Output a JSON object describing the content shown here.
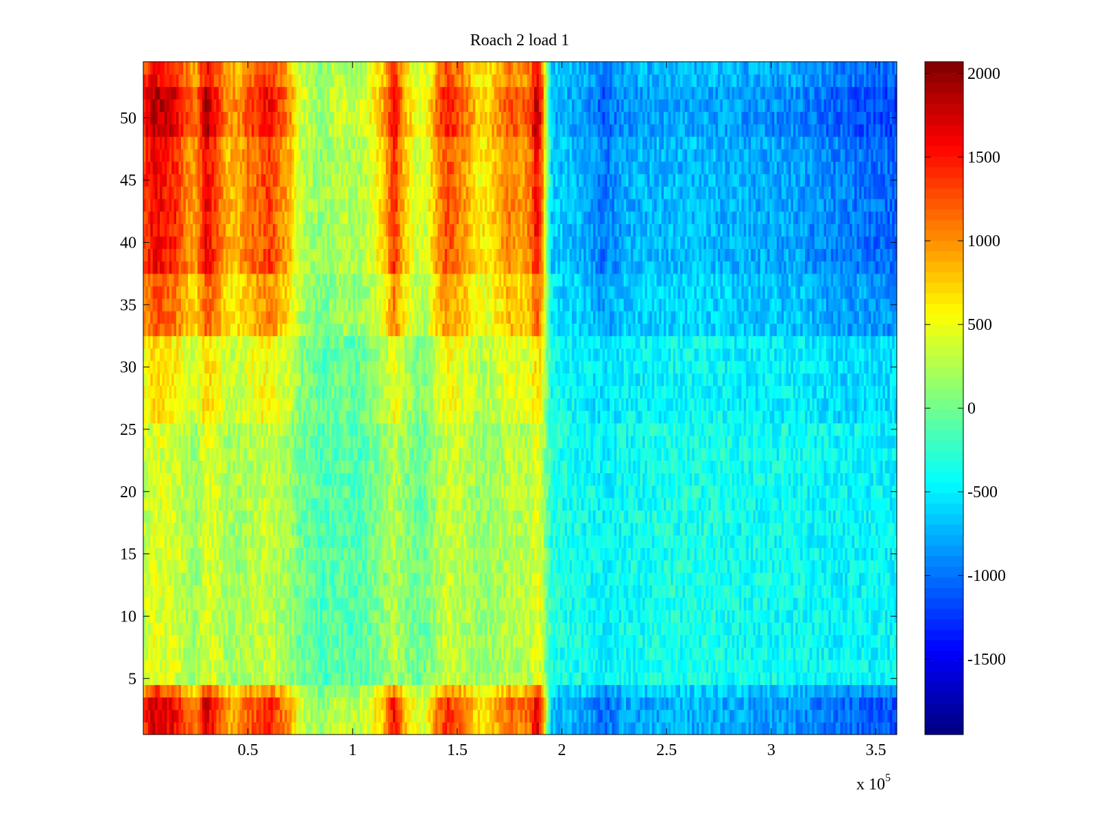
{
  "chart_data": {
    "type": "heatmap",
    "title": "Roach 2 load 1",
    "xlabel": "",
    "ylabel": "",
    "x_multiplier_label": "x 10",
    "x_multiplier_exponent": "5",
    "xlim": [
      0,
      3.6
    ],
    "ylim": [
      0.5,
      54.5
    ],
    "xticks": [
      0.5,
      1,
      1.5,
      2,
      2.5,
      3,
      3.5
    ],
    "xtick_labels": [
      "0.5",
      "1",
      "1.5",
      "2",
      "2.5",
      "3",
      "3.5"
    ],
    "yticks": [
      5,
      10,
      15,
      20,
      25,
      30,
      35,
      40,
      45,
      50
    ],
    "ytick_labels": [
      "5",
      "10",
      "15",
      "20",
      "25",
      "30",
      "35",
      "40",
      "45",
      "50"
    ],
    "rows": 54,
    "colormap": "jet",
    "colorbar": {
      "range": [
        -1950,
        2070
      ],
      "ticks": [
        2000,
        1500,
        1000,
        500,
        0,
        -500,
        -1000,
        -1500
      ],
      "tick_labels": [
        "2000",
        "1500",
        "1000",
        "500",
        "0",
        "-500",
        "-1000",
        "-1500"
      ]
    },
    "column_profile_x": [
      0,
      0.05,
      0.1,
      0.15,
      0.2,
      0.25,
      0.3,
      0.35,
      0.4,
      0.45,
      0.5,
      0.55,
      0.6,
      0.65,
      0.7,
      0.75,
      0.8,
      0.85,
      0.9,
      0.95,
      1.0,
      1.05,
      1.1,
      1.15,
      1.2,
      1.25,
      1.3,
      1.35,
      1.4,
      1.45,
      1.5,
      1.55,
      1.6,
      1.65,
      1.7,
      1.75,
      1.8,
      1.85,
      1.88,
      1.9,
      1.95,
      2.0,
      2.1,
      2.2,
      2.3,
      2.5,
      2.7,
      2.9,
      3.1,
      3.3,
      3.5,
      3.6
    ],
    "column_profile_top": [
      1500,
      1900,
      1800,
      1700,
      1300,
      1100,
      1900,
      1500,
      1000,
      1000,
      1300,
      1400,
      1600,
      1300,
      1000,
      400,
      300,
      150,
      300,
      400,
      300,
      400,
      600,
      900,
      1700,
      900,
      500,
      500,
      1100,
      1500,
      1300,
      1100,
      700,
      800,
      1000,
      1300,
      1100,
      1300,
      1900,
      1500,
      -700,
      -750,
      -800,
      -1100,
      -850,
      -800,
      -800,
      -850,
      -900,
      -1050,
      -1150,
      -1200
    ],
    "column_profile_low": [
      300,
      450,
      400,
      400,
      250,
      150,
      450,
      350,
      200,
      200,
      250,
      300,
      350,
      250,
      150,
      0,
      -50,
      -150,
      -100,
      -50,
      -150,
      -100,
      0,
      100,
      300,
      100,
      0,
      0,
      200,
      350,
      300,
      250,
      150,
      150,
      200,
      300,
      250,
      300,
      450,
      400,
      -300,
      -350,
      -400,
      -450,
      -400,
      -350,
      -350,
      -400,
      -400,
      -450,
      -450,
      -450
    ],
    "row_weight_description": "bands near y=33-54 and y=1-4 follow top profile; y=5-32 follow low profile"
  }
}
